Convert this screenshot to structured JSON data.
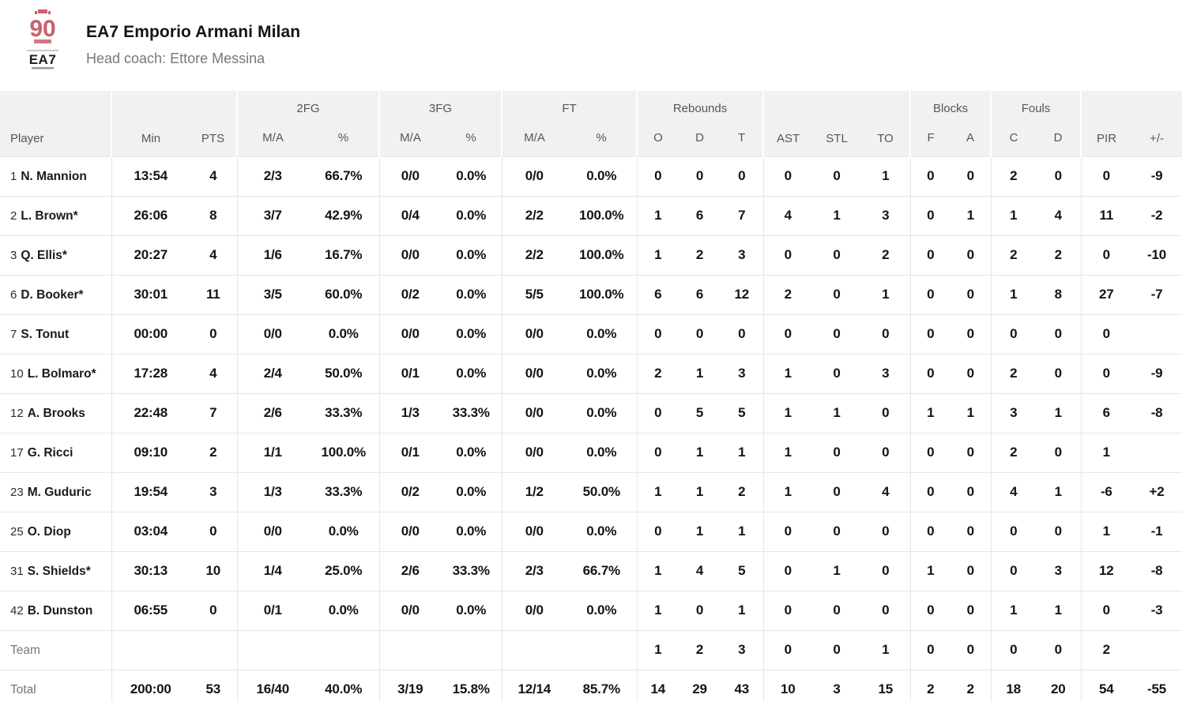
{
  "header": {
    "team_name": "EA7 Emporio Armani Milan",
    "head_coach": "Head coach: Ettore Messina",
    "logo": {
      "emblem_text": "90",
      "brand_text": "EA7",
      "accent_color": "#c9606a"
    }
  },
  "table": {
    "groups": {
      "fg2": "2FG",
      "fg3": "3FG",
      "ft": "FT",
      "rebounds": "Rebounds",
      "blocks": "Blocks",
      "fouls": "Fouls"
    },
    "headers": {
      "player": "Player",
      "min": "Min",
      "pts": "PTS",
      "ma": "M/A",
      "pct": "%",
      "reb_o": "O",
      "reb_d": "D",
      "reb_t": "T",
      "ast": "AST",
      "stl": "STL",
      "to": "TO",
      "blk_f": "F",
      "blk_a": "A",
      "foul_c": "C",
      "foul_d": "D",
      "pir": "PIR",
      "pm": "+/-"
    },
    "rows": [
      {
        "num": "1",
        "name": "N. Mannion",
        "stats": {
          "min": "13:54",
          "pts": "4",
          "fg2_ma": "2/3",
          "fg2_pct": "66.7%",
          "fg3_ma": "0/0",
          "fg3_pct": "0.0%",
          "ft_ma": "0/0",
          "ft_pct": "0.0%",
          "reb_o": "0",
          "reb_d": "0",
          "reb_t": "0",
          "ast": "0",
          "stl": "0",
          "to": "1",
          "blk_f": "0",
          "blk_a": "0",
          "foul_c": "2",
          "foul_d": "0",
          "pir": "0",
          "pm": "-9"
        }
      },
      {
        "num": "2",
        "name": "L. Brown*",
        "stats": {
          "min": "26:06",
          "pts": "8",
          "fg2_ma": "3/7",
          "fg2_pct": "42.9%",
          "fg3_ma": "0/4",
          "fg3_pct": "0.0%",
          "ft_ma": "2/2",
          "ft_pct": "100.0%",
          "reb_o": "1",
          "reb_d": "6",
          "reb_t": "7",
          "ast": "4",
          "stl": "1",
          "to": "3",
          "blk_f": "0",
          "blk_a": "1",
          "foul_c": "1",
          "foul_d": "4",
          "pir": "11",
          "pm": "-2"
        }
      },
      {
        "num": "3",
        "name": "Q. Ellis*",
        "stats": {
          "min": "20:27",
          "pts": "4",
          "fg2_ma": "1/6",
          "fg2_pct": "16.7%",
          "fg3_ma": "0/0",
          "fg3_pct": "0.0%",
          "ft_ma": "2/2",
          "ft_pct": "100.0%",
          "reb_o": "1",
          "reb_d": "2",
          "reb_t": "3",
          "ast": "0",
          "stl": "0",
          "to": "2",
          "blk_f": "0",
          "blk_a": "0",
          "foul_c": "2",
          "foul_d": "2",
          "pir": "0",
          "pm": "-10"
        }
      },
      {
        "num": "6",
        "name": "D. Booker*",
        "stats": {
          "min": "30:01",
          "pts": "11",
          "fg2_ma": "3/5",
          "fg2_pct": "60.0%",
          "fg3_ma": "0/2",
          "fg3_pct": "0.0%",
          "ft_ma": "5/5",
          "ft_pct": "100.0%",
          "reb_o": "6",
          "reb_d": "6",
          "reb_t": "12",
          "ast": "2",
          "stl": "0",
          "to": "1",
          "blk_f": "0",
          "blk_a": "0",
          "foul_c": "1",
          "foul_d": "8",
          "pir": "27",
          "pm": "-7"
        }
      },
      {
        "num": "7",
        "name": "S. Tonut",
        "stats": {
          "min": "00:00",
          "pts": "0",
          "fg2_ma": "0/0",
          "fg2_pct": "0.0%",
          "fg3_ma": "0/0",
          "fg3_pct": "0.0%",
          "ft_ma": "0/0",
          "ft_pct": "0.0%",
          "reb_o": "0",
          "reb_d": "0",
          "reb_t": "0",
          "ast": "0",
          "stl": "0",
          "to": "0",
          "blk_f": "0",
          "blk_a": "0",
          "foul_c": "0",
          "foul_d": "0",
          "pir": "0",
          "pm": ""
        }
      },
      {
        "num": "10",
        "name": "L. Bolmaro*",
        "stats": {
          "min": "17:28",
          "pts": "4",
          "fg2_ma": "2/4",
          "fg2_pct": "50.0%",
          "fg3_ma": "0/1",
          "fg3_pct": "0.0%",
          "ft_ma": "0/0",
          "ft_pct": "0.0%",
          "reb_o": "2",
          "reb_d": "1",
          "reb_t": "3",
          "ast": "1",
          "stl": "0",
          "to": "3",
          "blk_f": "0",
          "blk_a": "0",
          "foul_c": "2",
          "foul_d": "0",
          "pir": "0",
          "pm": "-9"
        }
      },
      {
        "num": "12",
        "name": "A. Brooks",
        "stats": {
          "min": "22:48",
          "pts": "7",
          "fg2_ma": "2/6",
          "fg2_pct": "33.3%",
          "fg3_ma": "1/3",
          "fg3_pct": "33.3%",
          "ft_ma": "0/0",
          "ft_pct": "0.0%",
          "reb_o": "0",
          "reb_d": "5",
          "reb_t": "5",
          "ast": "1",
          "stl": "1",
          "to": "0",
          "blk_f": "1",
          "blk_a": "1",
          "foul_c": "3",
          "foul_d": "1",
          "pir": "6",
          "pm": "-8"
        }
      },
      {
        "num": "17",
        "name": "G. Ricci",
        "stats": {
          "min": "09:10",
          "pts": "2",
          "fg2_ma": "1/1",
          "fg2_pct": "100.0%",
          "fg3_ma": "0/1",
          "fg3_pct": "0.0%",
          "ft_ma": "0/0",
          "ft_pct": "0.0%",
          "reb_o": "0",
          "reb_d": "1",
          "reb_t": "1",
          "ast": "1",
          "stl": "0",
          "to": "0",
          "blk_f": "0",
          "blk_a": "0",
          "foul_c": "2",
          "foul_d": "0",
          "pir": "1",
          "pm": ""
        }
      },
      {
        "num": "23",
        "name": "M. Guduric",
        "stats": {
          "min": "19:54",
          "pts": "3",
          "fg2_ma": "1/3",
          "fg2_pct": "33.3%",
          "fg3_ma": "0/2",
          "fg3_pct": "0.0%",
          "ft_ma": "1/2",
          "ft_pct": "50.0%",
          "reb_o": "1",
          "reb_d": "1",
          "reb_t": "2",
          "ast": "1",
          "stl": "0",
          "to": "4",
          "blk_f": "0",
          "blk_a": "0",
          "foul_c": "4",
          "foul_d": "1",
          "pir": "-6",
          "pm": "+2"
        }
      },
      {
        "num": "25",
        "name": "O. Diop",
        "stats": {
          "min": "03:04",
          "pts": "0",
          "fg2_ma": "0/0",
          "fg2_pct": "0.0%",
          "fg3_ma": "0/0",
          "fg3_pct": "0.0%",
          "ft_ma": "0/0",
          "ft_pct": "0.0%",
          "reb_o": "0",
          "reb_d": "1",
          "reb_t": "1",
          "ast": "0",
          "stl": "0",
          "to": "0",
          "blk_f": "0",
          "blk_a": "0",
          "foul_c": "0",
          "foul_d": "0",
          "pir": "1",
          "pm": "-1"
        }
      },
      {
        "num": "31",
        "name": "S. Shields*",
        "stats": {
          "min": "30:13",
          "pts": "10",
          "fg2_ma": "1/4",
          "fg2_pct": "25.0%",
          "fg3_ma": "2/6",
          "fg3_pct": "33.3%",
          "ft_ma": "2/3",
          "ft_pct": "66.7%",
          "reb_o": "1",
          "reb_d": "4",
          "reb_t": "5",
          "ast": "0",
          "stl": "1",
          "to": "0",
          "blk_f": "1",
          "blk_a": "0",
          "foul_c": "0",
          "foul_d": "3",
          "pir": "12",
          "pm": "-8"
        }
      },
      {
        "num": "42",
        "name": "B. Dunston",
        "stats": {
          "min": "06:55",
          "pts": "0",
          "fg2_ma": "0/1",
          "fg2_pct": "0.0%",
          "fg3_ma": "0/0",
          "fg3_pct": "0.0%",
          "ft_ma": "0/0",
          "ft_pct": "0.0%",
          "reb_o": "1",
          "reb_d": "0",
          "reb_t": "1",
          "ast": "0",
          "stl": "0",
          "to": "0",
          "blk_f": "0",
          "blk_a": "0",
          "foul_c": "1",
          "foul_d": "1",
          "pir": "0",
          "pm": "-3"
        }
      },
      {
        "label": "Team",
        "stats": {
          "min": "",
          "pts": "",
          "fg2_ma": "",
          "fg2_pct": "",
          "fg3_ma": "",
          "fg3_pct": "",
          "ft_ma": "",
          "ft_pct": "",
          "reb_o": "1",
          "reb_d": "2",
          "reb_t": "3",
          "ast": "0",
          "stl": "0",
          "to": "1",
          "blk_f": "0",
          "blk_a": "0",
          "foul_c": "0",
          "foul_d": "0",
          "pir": "2",
          "pm": ""
        }
      },
      {
        "label": "Total",
        "stats": {
          "min": "200:00",
          "pts": "53",
          "fg2_ma": "16/40",
          "fg2_pct": "40.0%",
          "fg3_ma": "3/19",
          "fg3_pct": "15.8%",
          "ft_ma": "12/14",
          "ft_pct": "85.7%",
          "reb_o": "14",
          "reb_d": "29",
          "reb_t": "43",
          "ast": "10",
          "stl": "3",
          "to": "15",
          "blk_f": "2",
          "blk_a": "2",
          "foul_c": "18",
          "foul_d": "20",
          "pir": "54",
          "pm": "-55"
        }
      }
    ]
  }
}
